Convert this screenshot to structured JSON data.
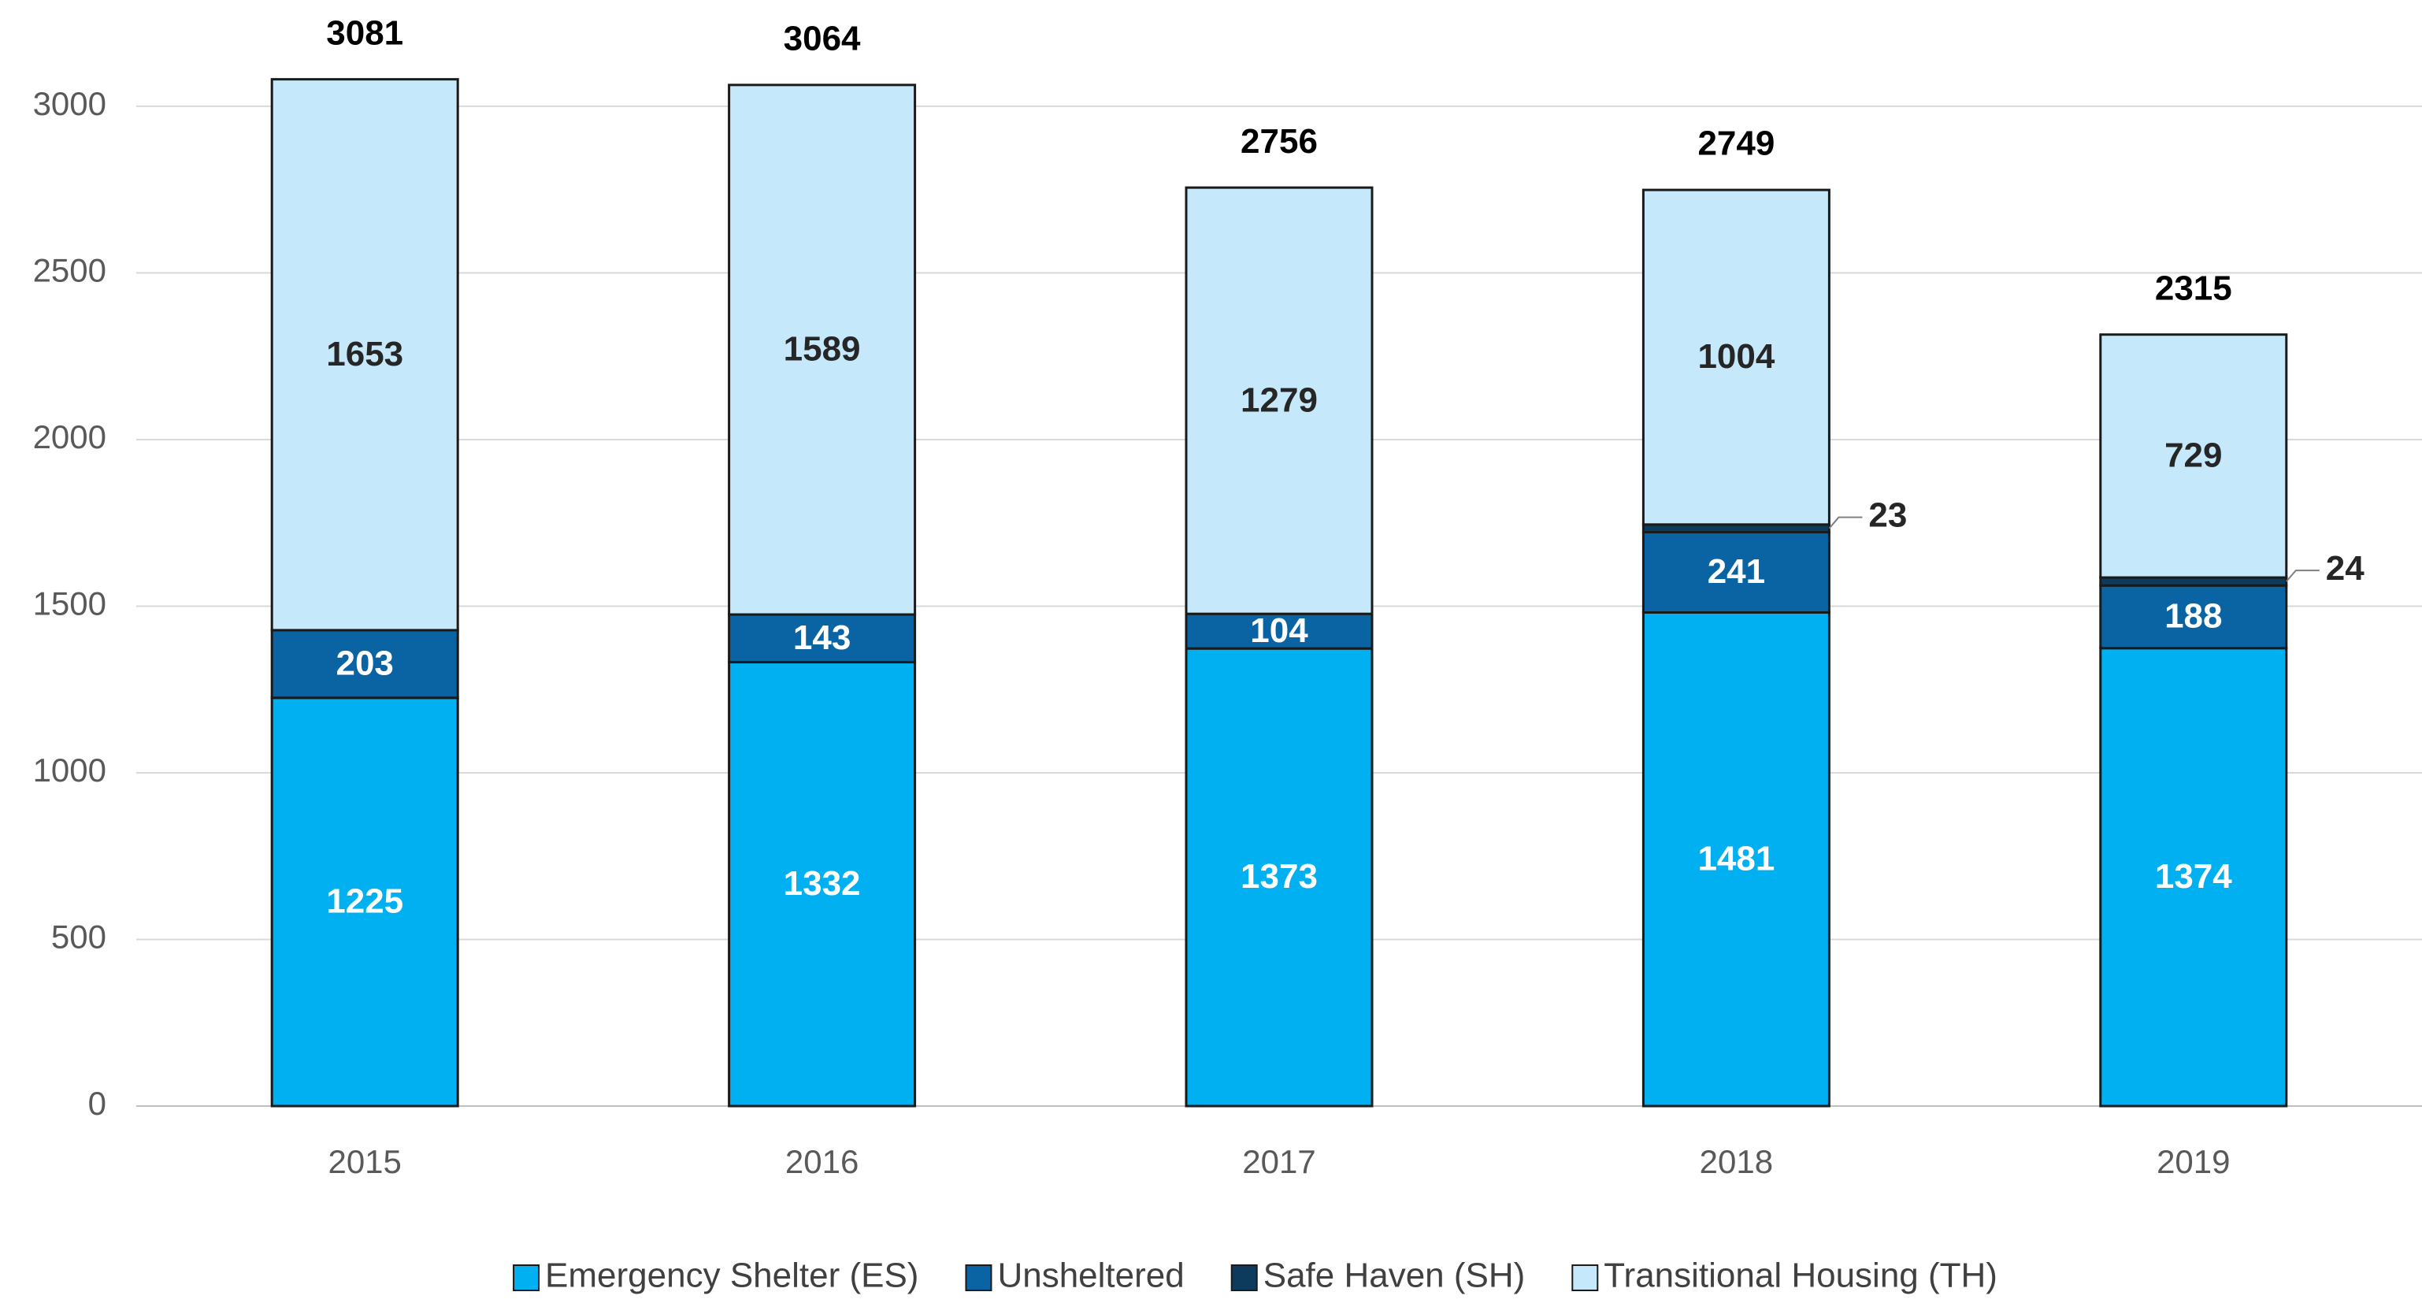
{
  "chart_data": {
    "type": "stacked_bar",
    "categories": [
      "2015",
      "2016",
      "2017",
      "2018",
      "2019"
    ],
    "series": [
      {
        "name": "Emergency Shelter (ES)",
        "color": "#00b0f0",
        "label_color": "#ffffff",
        "values": [
          1225,
          1332,
          1373,
          1481,
          1374
        ]
      },
      {
        "name": "Unsheltered",
        "color": "#0a64a4",
        "label_color": "#ffffff",
        "values": [
          203,
          143,
          104,
          241,
          188
        ]
      },
      {
        "name": "Safe Haven (SH)",
        "color": "#0d3b5e",
        "label_color": "#262626",
        "values": [
          null,
          null,
          null,
          23,
          24
        ]
      },
      {
        "name": "Transitional Housing (TH)",
        "color": "#c5e9fb",
        "label_color": "#262626",
        "values": [
          1653,
          1589,
          1279,
          1004,
          729
        ]
      }
    ],
    "totals": [
      3081,
      3064,
      2756,
      2749,
      2315
    ],
    "ylim": [
      0,
      3300
    ],
    "yticks": [
      0,
      500,
      1000,
      1500,
      2000,
      2500,
      3000
    ],
    "grid": true,
    "legend": "bottom"
  }
}
